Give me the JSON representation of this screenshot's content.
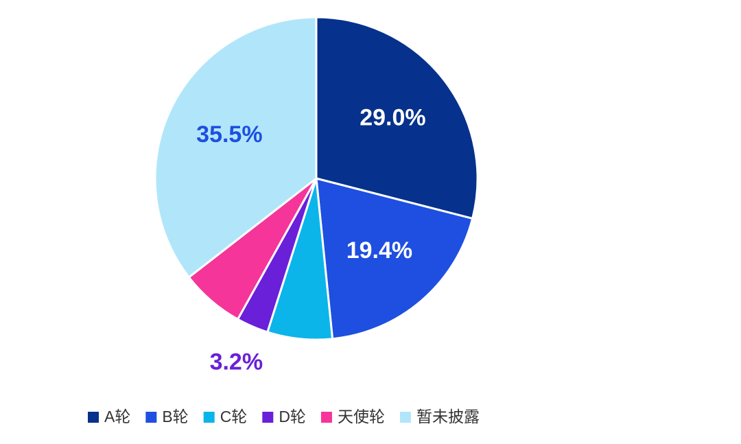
{
  "chart_data": {
    "type": "pie",
    "categories": [
      "A轮",
      "B轮",
      "C轮",
      "D轮",
      "天使轮",
      "暂未披露"
    ],
    "values": [
      29.0,
      19.4,
      6.5,
      3.2,
      6.4,
      35.5
    ],
    "value_labels": [
      "29.0%",
      "19.4%",
      null,
      "3.2%",
      null,
      "35.5%"
    ],
    "colors": [
      "#06318c",
      "#1e4fe0",
      "#0bb5ea",
      "#6a1fd8",
      "#f5359a",
      "#b1e6fa"
    ],
    "legend": "bottom"
  }
}
